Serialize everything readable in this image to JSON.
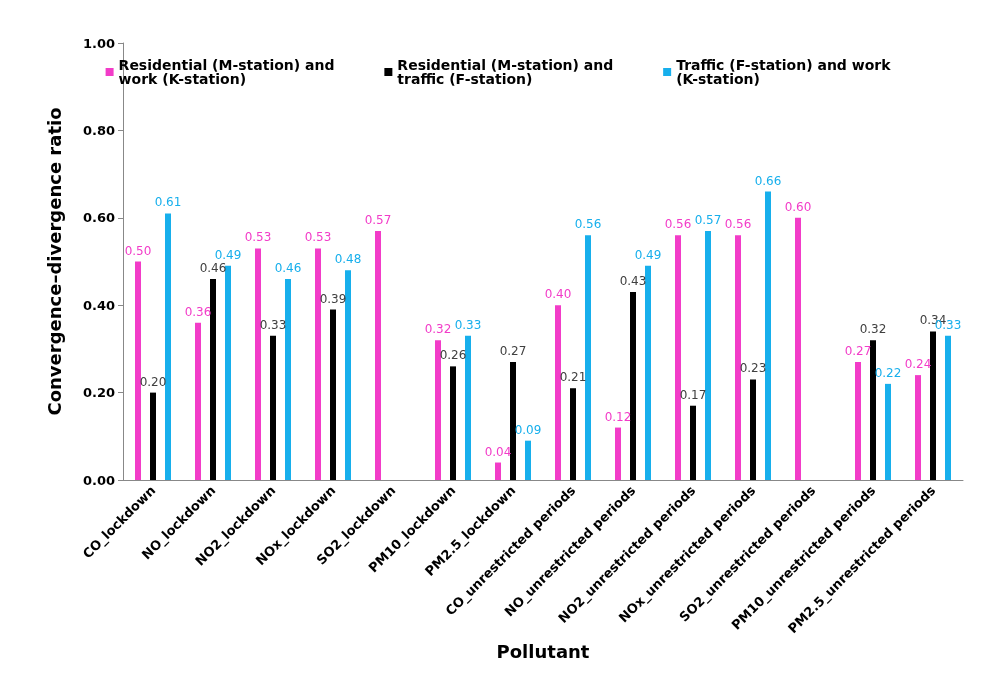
{
  "chart_data": {
    "type": "bar",
    "xlabel": "Pollutant",
    "ylabel": "Convergence–divergence ratio",
    "categories": [
      "CO_lockdown",
      "NO_lockdown",
      "NO2_lockdown",
      "NOx_lockdown",
      "SO2_lockdown",
      "PM10_lockdown",
      "PM2.5_lockdown",
      "CO_unrestricted periods",
      "NO_unrestricted periods",
      "NO2_unrestricted periods",
      "NOx_unrestricted periods",
      "SO2_unrestricted periods",
      "PM10_unrestricted periods",
      "PM2.5_unrestricted periods"
    ],
    "series": [
      {
        "name": "Residential (M-station) and work (K-station)",
        "color": "#f23cc8",
        "values": [
          0.5,
          0.36,
          0.53,
          0.53,
          0.57,
          0.32,
          0.04,
          0.4,
          0.12,
          0.56,
          0.56,
          0.6,
          0.27,
          0.24
        ],
        "value_labels": [
          "0.50",
          "0.36",
          "0.53",
          "0.53",
          "0.57",
          "0.32",
          "0.04",
          "0.40",
          "0.12",
          "0.56",
          "0.56",
          "0.60",
          "0.27",
          "0.24"
        ]
      },
      {
        "name": "Residential (M-station) and traffic (F-station)",
        "color": "#000000",
        "values": [
          0.2,
          0.46,
          0.33,
          0.39,
          null,
          0.26,
          0.27,
          0.21,
          0.43,
          0.17,
          0.23,
          null,
          0.32,
          0.34
        ],
        "value_labels": [
          "0.20",
          "0.46",
          "0.33",
          "0.39",
          null,
          "0.26",
          "0.27",
          "0.21",
          "0.43",
          "0.17",
          "0.23",
          null,
          "0.32",
          "0.34"
        ]
      },
      {
        "name": "Traffic (F-station) and work (K-station)",
        "color": "#17afec",
        "values": [
          0.61,
          0.49,
          0.46,
          0.48,
          null,
          0.33,
          0.09,
          0.56,
          0.49,
          0.57,
          0.66,
          null,
          0.22,
          0.33
        ],
        "value_labels": [
          "0.61",
          "0.49",
          "0.46",
          "0.48",
          null,
          "0.33",
          "0.09",
          "0.56",
          "0.49",
          "0.57",
          "0.66",
          null,
          "0.22",
          "0.33"
        ]
      }
    ],
    "ylim": [
      0,
      1
    ],
    "yticks": [
      {
        "value": 0,
        "label": "0.00"
      },
      {
        "value": 0.2,
        "label": "0.20"
      },
      {
        "value": 0.4,
        "label": "0.40"
      },
      {
        "value": 0.6,
        "label": "0.60"
      },
      {
        "value": 0.8,
        "label": "0.80"
      },
      {
        "value": 1,
        "label": "1.00"
      }
    ],
    "grid": false,
    "legend": "top"
  }
}
